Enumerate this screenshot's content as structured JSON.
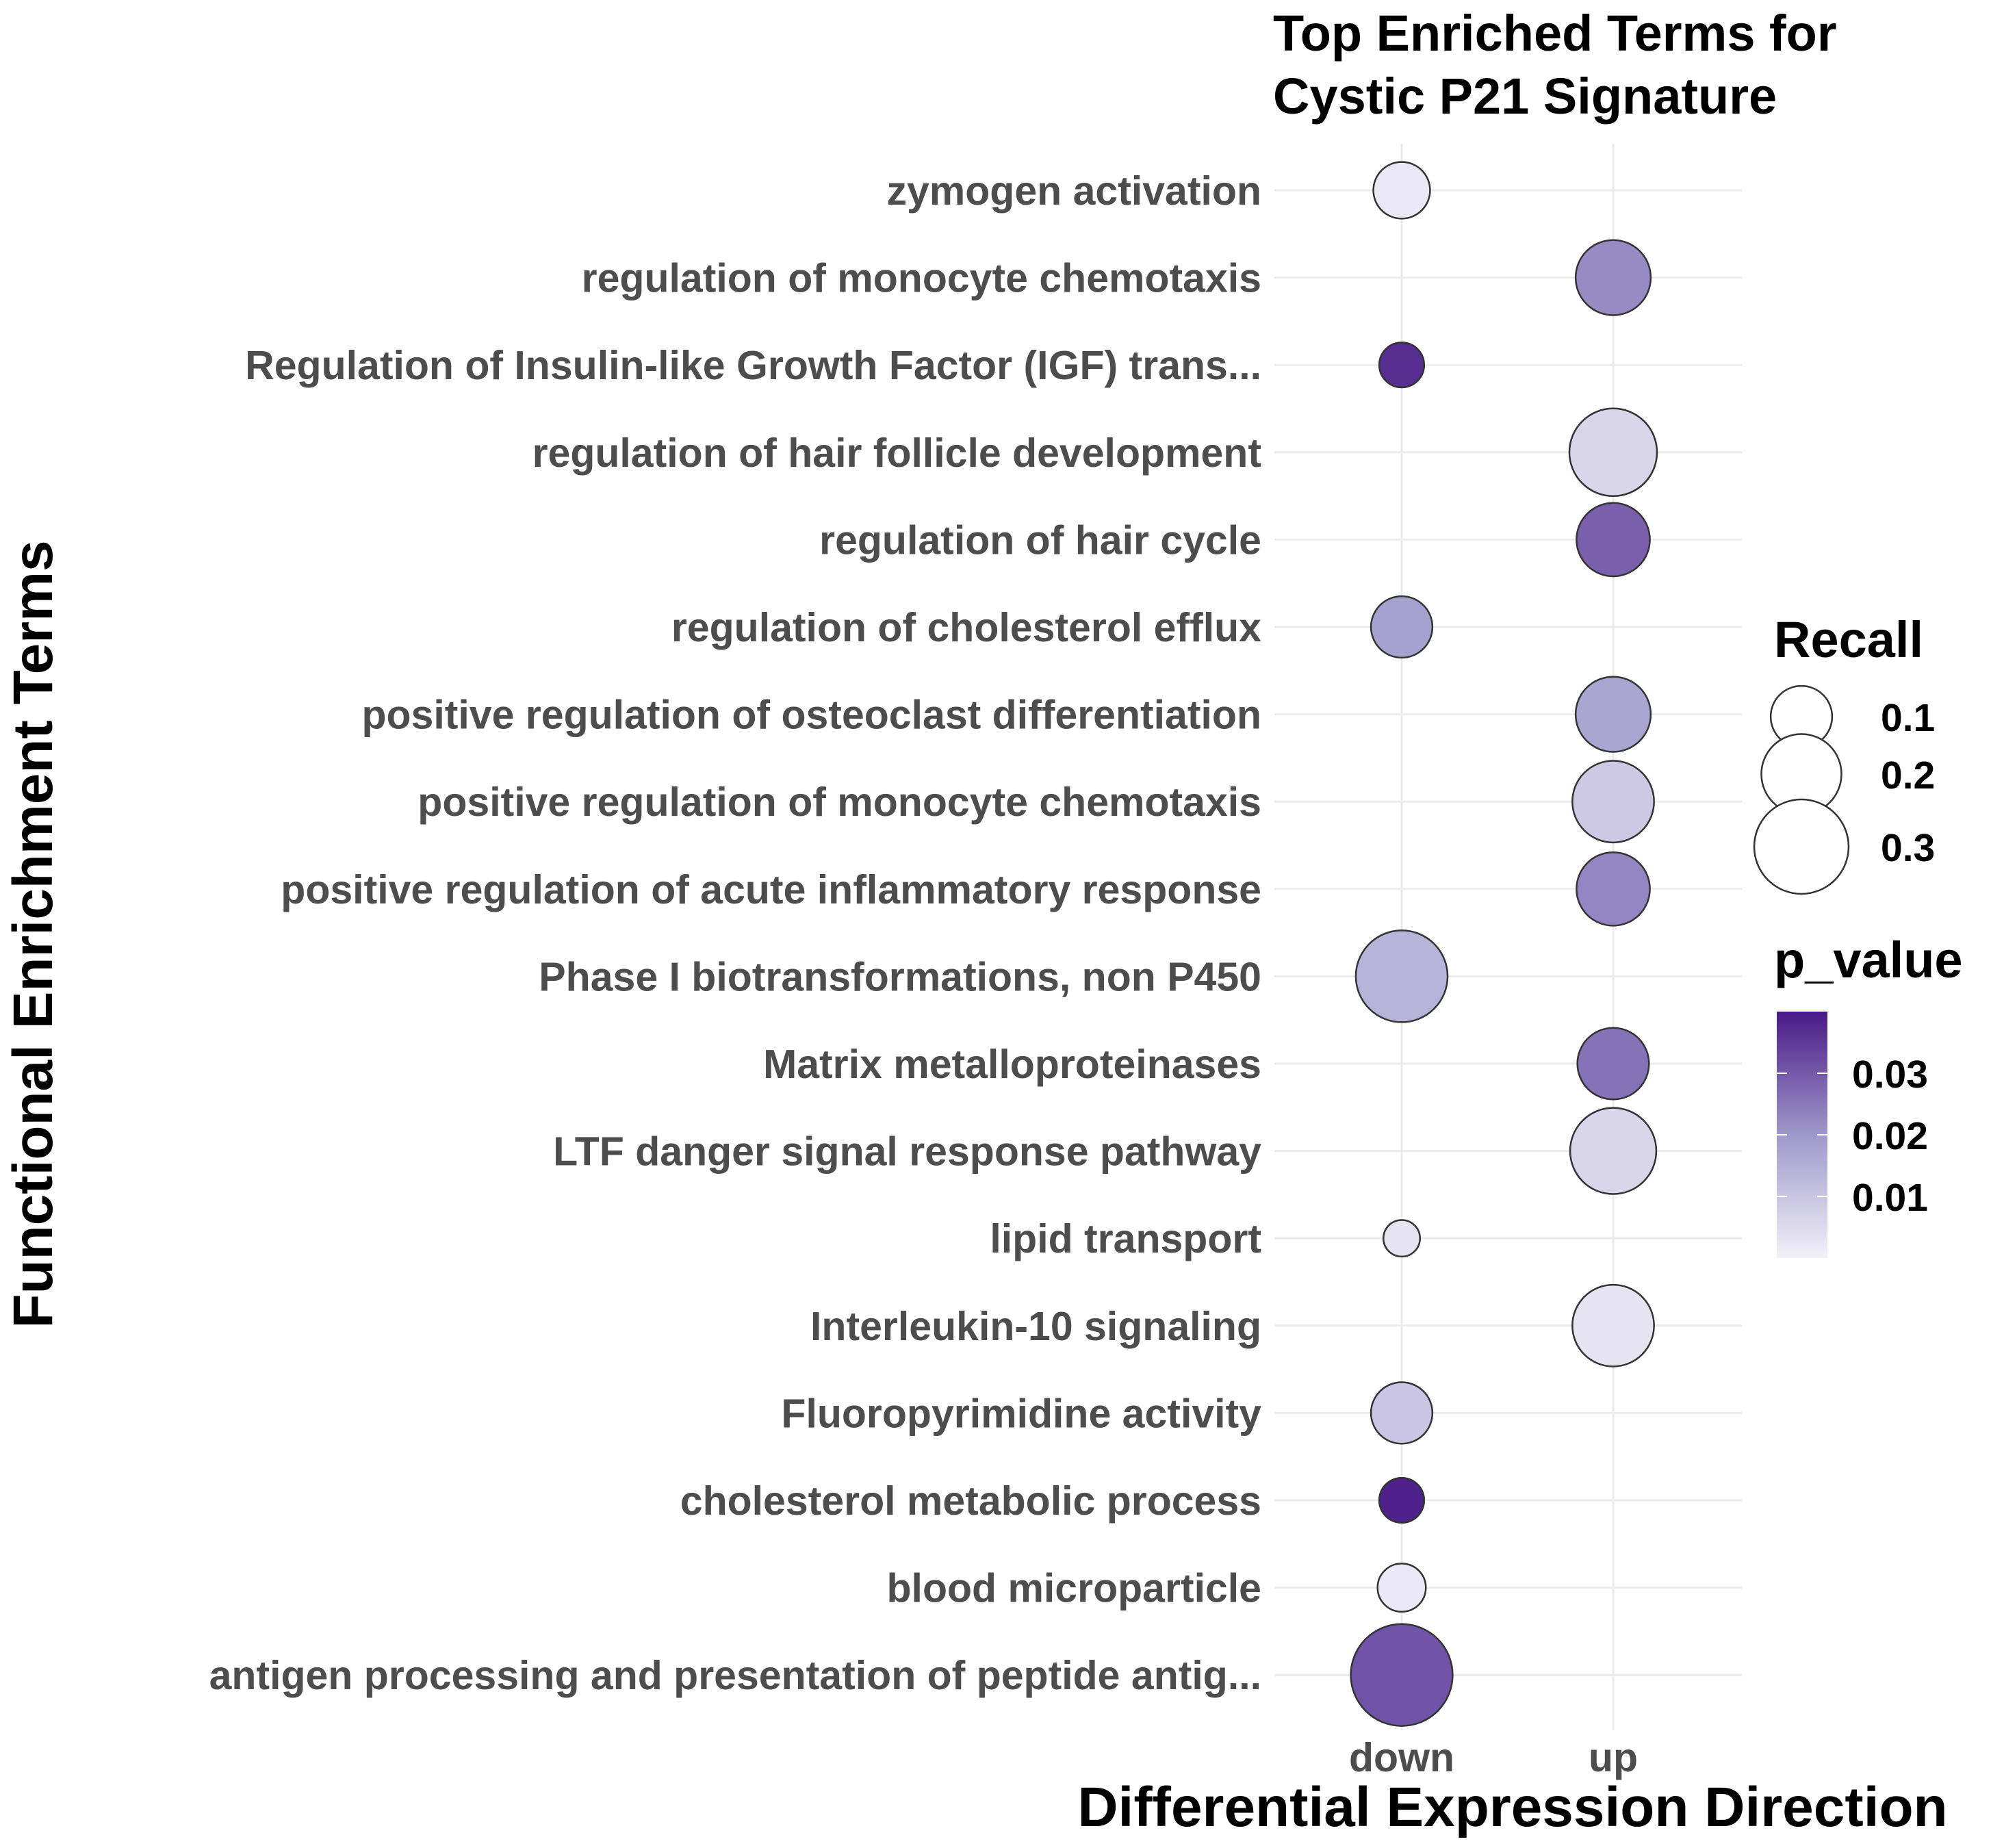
{
  "chart_data": {
    "type": "scatter",
    "title": "Top Enriched Terms for\nCystic P21 Signature",
    "xlabel": "Differential Expression Direction",
    "ylabel": "Functional Enrichment Terms",
    "x_categories": [
      "down",
      "up"
    ],
    "y_categories": [
      "zymogen activation",
      "regulation of monocyte chemotaxis",
      "Regulation of Insulin-like Growth Factor (IGF) trans...",
      "regulation of hair follicle development",
      "regulation of hair cycle",
      "regulation of cholesterol efflux",
      "positive regulation of osteoclast differentiation",
      "positive regulation of monocyte chemotaxis",
      "positive regulation of acute inflammatory response",
      "Phase I biotransformations, non P450",
      "Matrix metalloproteinases",
      "LTF danger signal response pathway",
      "lipid transport",
      "Interleukin-10 signaling",
      "Fluoropyrimidine activity",
      "cholesterol metabolic process",
      "blood microparticle",
      "antigen processing and presentation of peptide antig..."
    ],
    "points": [
      {
        "term": "zymogen activation",
        "direction": "down",
        "recall": 0.08,
        "p_value": 0.002
      },
      {
        "term": "regulation of monocyte chemotaxis",
        "direction": "up",
        "recall": 0.17,
        "p_value": 0.022
      },
      {
        "term": "Regulation of Insulin-like Growth Factor (IGF) trans...",
        "direction": "down",
        "recall": 0.04,
        "p_value": 0.037
      },
      {
        "term": "regulation of hair follicle development",
        "direction": "up",
        "recall": 0.25,
        "p_value": 0.006
      },
      {
        "term": "regulation of hair cycle",
        "direction": "up",
        "recall": 0.16,
        "p_value": 0.029
      },
      {
        "term": "regulation of cholesterol efflux",
        "direction": "down",
        "recall": 0.1,
        "p_value": 0.018
      },
      {
        "term": "positive regulation of osteoclast differentiation",
        "direction": "up",
        "recall": 0.17,
        "p_value": 0.017
      },
      {
        "term": "positive regulation of monocyte chemotaxis",
        "direction": "up",
        "recall": 0.21,
        "p_value": 0.009
      },
      {
        "term": "positive regulation of acute inflammatory response",
        "direction": "up",
        "recall": 0.16,
        "p_value": 0.023
      },
      {
        "term": "Phase I biotransformations, non P450",
        "direction": "down",
        "recall": 0.28,
        "p_value": 0.014
      },
      {
        "term": "Matrix metalloproteinases",
        "direction": "up",
        "recall": 0.15,
        "p_value": 0.026
      },
      {
        "term": "LTF danger signal response pathway",
        "direction": "up",
        "recall": 0.24,
        "p_value": 0.006
      },
      {
        "term": "lipid transport",
        "direction": "down",
        "recall": 0.02,
        "p_value": 0.003
      },
      {
        "term": "Interleukin-10 signaling",
        "direction": "up",
        "recall": 0.21,
        "p_value": 0.003
      },
      {
        "term": "Fluoropyrimidine activity",
        "direction": "down",
        "recall": 0.1,
        "p_value": 0.01
      },
      {
        "term": "cholesterol metabolic process",
        "direction": "down",
        "recall": 0.04,
        "p_value": 0.039
      },
      {
        "term": "blood microparticle",
        "direction": "down",
        "recall": 0.05,
        "p_value": 0.002
      },
      {
        "term": "antigen processing and presentation of peptide antig...",
        "direction": "down",
        "recall": 0.36,
        "p_value": 0.031
      }
    ],
    "legend": {
      "size_title": "Recall",
      "size_breaks": [
        0.1,
        0.2,
        0.3
      ],
      "size_labels": [
        "0.1",
        "0.2",
        "0.3"
      ],
      "color_title": "p_value",
      "color_breaks": [
        0.01,
        0.02,
        0.03
      ],
      "color_labels": [
        "0.01",
        "0.02",
        "0.03"
      ],
      "color_range": [
        0.0,
        0.04
      ],
      "placement": "right"
    },
    "colors": {
      "low": "#f2f1f8",
      "mid": "#9f98cb",
      "high": "#4a1a87",
      "grid": "#ebebeb",
      "point_stroke": "#333333"
    },
    "grid": true
  }
}
